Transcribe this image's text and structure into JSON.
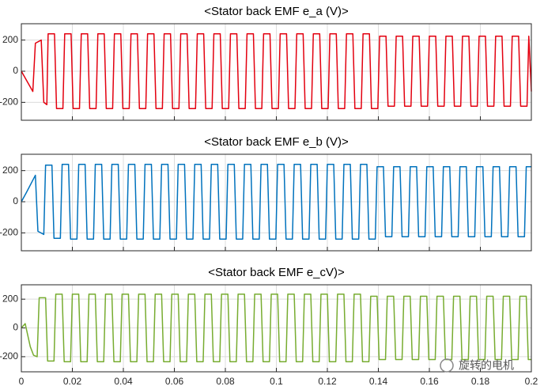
{
  "chart_data": [
    {
      "type": "line",
      "title": "<Stator back EMF e_a (V)>",
      "xlim": [
        0,
        0.2
      ],
      "ylim": [
        -315,
        305
      ],
      "xticks": [
        0,
        0.02,
        0.04,
        0.06,
        0.08,
        0.1,
        0.12,
        0.14,
        0.16,
        0.18,
        0.2
      ],
      "yticks": [
        -200,
        0,
        200
      ],
      "grid": true,
      "x": [
        0,
        0.0045,
        0.0055,
        0.0078,
        0.0088,
        0.01,
        0.0105,
        0.013,
        0.0138,
        0.0163,
        0.017,
        0.0195,
        0.0203,
        0.0228,
        0.0235,
        0.026,
        0.0268,
        0.0293,
        0.03,
        0.0325,
        0.0333,
        0.0358,
        0.0365,
        0.039,
        0.0398,
        0.0423,
        0.043,
        0.0455,
        0.0463,
        0.0488,
        0.0495,
        0.052,
        0.0528,
        0.0553,
        0.056,
        0.0585,
        0.0593,
        0.0618,
        0.0625,
        0.065,
        0.0658,
        0.0683,
        0.069,
        0.0715,
        0.0723,
        0.0748,
        0.0755,
        0.078,
        0.0788,
        0.0813,
        0.082,
        0.0845,
        0.0853,
        0.0878,
        0.0885,
        0.091,
        0.0918,
        0.0943,
        0.095,
        0.0975,
        0.0983,
        0.1008,
        0.1015,
        0.104,
        0.1048,
        0.1073,
        0.108,
        0.1105,
        0.1113,
        0.1138,
        0.1145,
        0.117,
        0.1178,
        0.1203,
        0.121,
        0.1235,
        0.1243,
        0.1268,
        0.1275,
        0.13,
        0.1308,
        0.1333,
        0.134,
        0.1365,
        0.1373,
        0.1398,
        0.1405,
        0.143,
        0.1438,
        0.1463,
        0.147,
        0.1495,
        0.1503,
        0.1528,
        0.1535,
        0.156,
        0.1568,
        0.1593,
        0.16,
        0.1625,
        0.1633,
        0.1658,
        0.1665,
        0.169,
        0.1698,
        0.1723,
        0.173,
        0.1755,
        0.1763,
        0.1788,
        0.1795,
        0.182,
        0.1828,
        0.1853,
        0.186,
        0.1885,
        0.1893,
        0.1918,
        0.1925,
        0.195,
        0.1958,
        0.1983,
        0.199,
        0.2
      ],
      "series": [
        {
          "color": "#e3000f",
          "values": [
            0,
            -130,
            180,
            200,
            -200,
            -215,
            240,
            240,
            -240,
            -240,
            240,
            240,
            -240,
            -240,
            240,
            240,
            -240,
            -240,
            240,
            240,
            -240,
            -240,
            240,
            240,
            -240,
            -240,
            240,
            240,
            -240,
            -240,
            240,
            240,
            -240,
            -240,
            240,
            240,
            -240,
            -240,
            240,
            240,
            -240,
            -240,
            240,
            240,
            -240,
            -240,
            240,
            240,
            -240,
            -240,
            240,
            240,
            -240,
            -240,
            240,
            240,
            -240,
            -240,
            240,
            240,
            -240,
            -240,
            240,
            240,
            -240,
            -240,
            240,
            240,
            -240,
            -240,
            240,
            240,
            -240,
            -240,
            240,
            240,
            -240,
            -240,
            240,
            240,
            -240,
            -240,
            240,
            240,
            -240,
            -240,
            225,
            225,
            -225,
            -225,
            225,
            225,
            -225,
            -225,
            225,
            225,
            -225,
            -225,
            225,
            225,
            -225,
            -225,
            225,
            225,
            -225,
            -225,
            225,
            225,
            -225,
            -225,
            225,
            225,
            -225,
            -225,
            225,
            225,
            -225,
            -225,
            225,
            225,
            -225,
            -225,
            225,
            -130
          ]
        }
      ]
    },
    {
      "type": "line",
      "title": "<Stator back EMF e_b (V)>",
      "xlim": [
        0,
        0.2
      ],
      "ylim": [
        -315,
        305
      ],
      "xticks": [
        0,
        0.02,
        0.04,
        0.06,
        0.08,
        0.1,
        0.12,
        0.14,
        0.16,
        0.18,
        0.2
      ],
      "yticks": [
        -200,
        0,
        200
      ],
      "grid": true,
      "x": [
        0,
        0.002,
        0.0055,
        0.0065,
        0.0088,
        0.0095,
        0.012,
        0.0128,
        0.0153,
        0.016,
        0.0185,
        0.0193,
        0.0218,
        0.0225,
        0.025,
        0.0258,
        0.0283,
        0.029,
        0.0315,
        0.0323,
        0.0348,
        0.0355,
        0.038,
        0.0388,
        0.0413,
        0.042,
        0.0445,
        0.0453,
        0.0478,
        0.0485,
        0.051,
        0.0518,
        0.0543,
        0.055,
        0.0575,
        0.0583,
        0.0608,
        0.0615,
        0.064,
        0.0648,
        0.0673,
        0.068,
        0.0705,
        0.0713,
        0.0738,
        0.0745,
        0.077,
        0.0778,
        0.0803,
        0.081,
        0.0835,
        0.0843,
        0.0868,
        0.0875,
        0.09,
        0.0908,
        0.0933,
        0.094,
        0.0965,
        0.0973,
        0.0998,
        0.1005,
        0.103,
        0.1038,
        0.1063,
        0.107,
        0.1095,
        0.1103,
        0.1128,
        0.1135,
        0.116,
        0.1168,
        0.1193,
        0.12,
        0.1225,
        0.1233,
        0.1258,
        0.1265,
        0.129,
        0.1298,
        0.1323,
        0.133,
        0.1355,
        0.1363,
        0.1388,
        0.1395,
        0.142,
        0.1428,
        0.1453,
        0.146,
        0.1485,
        0.1493,
        0.1518,
        0.1525,
        0.155,
        0.1558,
        0.1583,
        0.159,
        0.1615,
        0.1623,
        0.1648,
        0.1655,
        0.168,
        0.1688,
        0.1713,
        0.172,
        0.1745,
        0.1753,
        0.1778,
        0.1785,
        0.181,
        0.1818,
        0.1843,
        0.185,
        0.1875,
        0.1883,
        0.1908,
        0.1915,
        0.194,
        0.1948,
        0.1973,
        0.198,
        0.2
      ],
      "series": [
        {
          "color": "#0072bd",
          "values": [
            0,
            60,
            170,
            -190,
            -210,
            235,
            235,
            -235,
            -235,
            240,
            240,
            -240,
            -240,
            240,
            240,
            -240,
            -240,
            240,
            240,
            -240,
            -240,
            240,
            240,
            -240,
            -240,
            240,
            240,
            -240,
            -240,
            240,
            240,
            -240,
            -240,
            240,
            240,
            -240,
            -240,
            240,
            240,
            -240,
            -240,
            240,
            240,
            -240,
            -240,
            240,
            240,
            -240,
            -240,
            240,
            240,
            -240,
            -240,
            240,
            240,
            -240,
            -240,
            240,
            240,
            -240,
            -240,
            240,
            240,
            -240,
            -240,
            240,
            240,
            -240,
            -240,
            240,
            240,
            -240,
            -240,
            240,
            240,
            -240,
            -240,
            240,
            240,
            -240,
            -240,
            240,
            240,
            -240,
            -240,
            225,
            225,
            -225,
            -225,
            225,
            225,
            -225,
            -225,
            225,
            225,
            -225,
            -225,
            225,
            225,
            -225,
            -225,
            225,
            225,
            -225,
            -225,
            225,
            225,
            -225,
            -225,
            225,
            225,
            -225,
            -225,
            225,
            225,
            -225,
            -225,
            225,
            225,
            -225,
            -225,
            225,
            225
          ]
        }
      ]
    },
    {
      "type": "line",
      "title": "<Stator back EMF e_cV)>",
      "xlim": [
        0,
        0.2
      ],
      "ylim": [
        -305,
        300
      ],
      "xticks": [
        0,
        0.02,
        0.04,
        0.06,
        0.08,
        0.1,
        0.12,
        0.14,
        0.16,
        0.18,
        0.2
      ],
      "yticks": [
        -200,
        0,
        200
      ],
      "grid": true,
      "x": [
        0,
        0.0015,
        0.0035,
        0.0048,
        0.0062,
        0.007,
        0.0095,
        0.0103,
        0.0128,
        0.0135,
        0.016,
        0.0168,
        0.0193,
        0.02,
        0.0225,
        0.0233,
        0.0258,
        0.0265,
        0.029,
        0.0298,
        0.0323,
        0.033,
        0.0355,
        0.0363,
        0.0388,
        0.0395,
        0.042,
        0.0428,
        0.0453,
        0.046,
        0.0485,
        0.0493,
        0.0518,
        0.0525,
        0.055,
        0.0558,
        0.0583,
        0.059,
        0.0615,
        0.0623,
        0.0648,
        0.0655,
        0.068,
        0.0688,
        0.0713,
        0.072,
        0.0745,
        0.0753,
        0.0778,
        0.0785,
        0.081,
        0.0818,
        0.0843,
        0.085,
        0.0875,
        0.0883,
        0.0908,
        0.0915,
        0.094,
        0.0948,
        0.0973,
        0.098,
        0.1005,
        0.1013,
        0.1038,
        0.1045,
        0.107,
        0.1078,
        0.1103,
        0.111,
        0.1135,
        0.1143,
        0.1168,
        0.1175,
        0.12,
        0.1208,
        0.1233,
        0.124,
        0.1265,
        0.1273,
        0.1298,
        0.1305,
        0.133,
        0.1338,
        0.1363,
        0.137,
        0.1395,
        0.1403,
        0.1428,
        0.1435,
        0.146,
        0.1468,
        0.1493,
        0.15,
        0.1525,
        0.1533,
        0.1558,
        0.1565,
        0.159,
        0.1598,
        0.1623,
        0.163,
        0.1655,
        0.1663,
        0.1688,
        0.1695,
        0.172,
        0.1728,
        0.1753,
        0.176,
        0.1785,
        0.1793,
        0.1818,
        0.1825,
        0.185,
        0.1858,
        0.1883,
        0.189,
        0.1915,
        0.1923,
        0.1948,
        0.1955,
        0.198,
        0.1988,
        0.2
      ],
      "series": [
        {
          "color": "#77ac30",
          "values": [
            0,
            30,
            -130,
            -190,
            -200,
            210,
            210,
            -230,
            -230,
            235,
            235,
            -235,
            -235,
            235,
            235,
            -235,
            -235,
            235,
            235,
            -235,
            -235,
            235,
            235,
            -235,
            -235,
            235,
            235,
            -235,
            -235,
            235,
            235,
            -235,
            -235,
            235,
            235,
            -235,
            -235,
            235,
            235,
            -235,
            -235,
            235,
            235,
            -235,
            -235,
            235,
            235,
            -235,
            -235,
            235,
            235,
            -235,
            -235,
            235,
            235,
            -235,
            -235,
            235,
            235,
            -235,
            -235,
            235,
            235,
            -235,
            -235,
            235,
            235,
            -235,
            -235,
            235,
            235,
            -235,
            -235,
            235,
            235,
            -235,
            -235,
            235,
            235,
            -235,
            -235,
            235,
            235,
            -235,
            -235,
            220,
            220,
            -220,
            -220,
            220,
            220,
            -220,
            -220,
            220,
            220,
            -220,
            -220,
            220,
            220,
            -220,
            -220,
            220,
            220,
            -220,
            -220,
            220,
            220,
            -220,
            -220,
            220,
            220,
            -220,
            -220,
            220,
            220,
            -220,
            -220,
            220,
            220,
            -220,
            -220,
            220,
            220,
            -220,
            -220
          ]
        }
      ],
      "annotation": "旋转的电机"
    }
  ]
}
